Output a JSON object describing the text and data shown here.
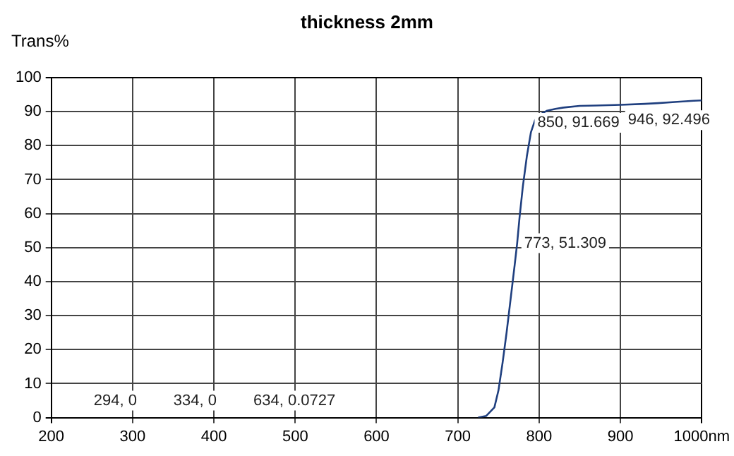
{
  "chart_data": {
    "type": "line",
    "title": "thickness 2mm",
    "ylabel": "Trans%",
    "x": [
      725,
      735,
      745,
      750,
      755,
      760,
      765,
      770,
      773,
      776,
      780,
      785,
      790,
      795,
      800,
      810,
      820,
      830,
      850,
      870,
      900,
      930,
      946,
      970,
      990,
      1000
    ],
    "series": [
      {
        "color": "#1f3f7f",
        "values": [
          0,
          0.5,
          3,
          8,
          16,
          25,
          35,
          45,
          51.3,
          59,
          68,
          77,
          84,
          87.5,
          89,
          90.3,
          90.8,
          91.2,
          91.7,
          91.8,
          92,
          92.3,
          92.5,
          92.9,
          93.2,
          93.3
        ]
      }
    ],
    "xlim": [
      200,
      1000
    ],
    "xticks": [
      200,
      300,
      400,
      500,
      600,
      700,
      800,
      900,
      {
        "value": 1000,
        "label": "1000nm"
      }
    ],
    "ylim": [
      0,
      100
    ],
    "yticks": [
      0,
      10,
      20,
      30,
      40,
      50,
      60,
      70,
      80,
      90,
      100
    ],
    "annotations": [
      "294, 0",
      "334, 0",
      "634, 0.0727",
      {
        "text": "773, 51.309",
        "x": 773,
        "y": 51.309
      },
      {
        "text": "850, 91.669",
        "x": 850,
        "y": 91.669
      },
      {
        "text": "946, 92.496",
        "x": 946,
        "y": 92.496
      }
    ],
    "grid": true,
    "legend": false,
    "marker": "none",
    "line_style": "solid"
  }
}
